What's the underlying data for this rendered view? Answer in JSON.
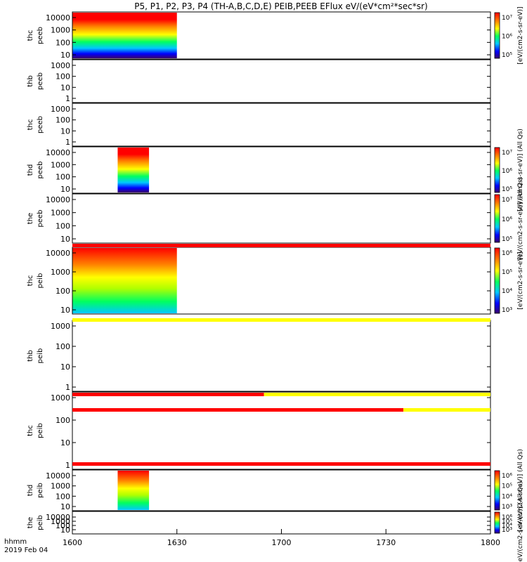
{
  "chart_data": {
    "type": "heatmap",
    "title": "P5, P1, P2, P3, P4 (TH-A,B,C,D,E) PEIB,PEEB EFlux eV/(eV*cm²*sec*sr)",
    "x": {
      "label_line1": "hhmm",
      "label_line2": "2019 Feb 04",
      "range": [
        "1600",
        "1800"
      ],
      "tick_labels": [
        "1600",
        "1630",
        "1700",
        "1730",
        "1800"
      ]
    },
    "panels": [
      {
        "id": "thc_peeb",
        "label_line1": "thc",
        "label_line2": "peeb",
        "yticks": [
          "10",
          "100",
          "1000",
          "10000"
        ],
        "ylog": true,
        "data": {
          "start": "1600",
          "end": "1630"
        },
        "colorbar": {
          "label": "[eV/(cm2-s-sr-eV)]",
          "ticks": [
            "10⁵",
            "10⁶",
            "10⁷"
          ]
        }
      },
      {
        "id": "thb_peeb",
        "label_line1": "thb",
        "label_line2": "peeb",
        "yticks": [
          "1",
          "10",
          "100",
          "1000"
        ],
        "ylog": true,
        "data": null
      },
      {
        "id": "thc_peeb_2",
        "label_line1": "thc",
        "label_line2": "peeb",
        "yticks": [
          "1",
          "10",
          "100",
          "1000"
        ],
        "ylog": true,
        "data": null
      },
      {
        "id": "thd_peeb",
        "label_line1": "thd",
        "label_line2": "peeb",
        "yticks": [
          "10",
          "100",
          "1000",
          "10000"
        ],
        "ylog": true,
        "data": {
          "start": "1613",
          "end": "1622"
        },
        "colorbar": {
          "label": "[eV/(cm2-s-sr-eV)] (All Qs)",
          "ticks": [
            "10⁵",
            "10⁶",
            "10⁷"
          ]
        }
      },
      {
        "id": "the_peeb",
        "label_line1": "the",
        "label_line2": "peeb",
        "yticks": [
          "10",
          "100",
          "1000",
          "10000"
        ],
        "ylog": true,
        "data": null,
        "colorbar": {
          "label": "[eV/(cm2-s-sr-eV)] (All Qs)",
          "ticks": [
            "10⁵",
            "10⁶",
            "10⁷"
          ]
        }
      },
      {
        "id": "thc_peib",
        "label_line1": "thc",
        "label_line2": "peib",
        "yticks": [
          "10",
          "100",
          "1000",
          "10000"
        ],
        "ylog": true,
        "data": {
          "start": "1600",
          "end": "1630"
        },
        "colorbar": {
          "label": "[eV/(cm2-s-sr-eV)]",
          "ticks": [
            "10³",
            "10⁴",
            "10⁵",
            "10⁶"
          ]
        }
      },
      {
        "id": "thb_peib",
        "label_line1": "thb",
        "label_line2": "peib",
        "yticks": [
          "1",
          "10",
          "100",
          "1000"
        ],
        "ylog": true,
        "data": null
      },
      {
        "id": "thc_peib_2",
        "label_line1": "thc",
        "label_line2": "peib",
        "yticks": [
          "1",
          "10",
          "100",
          "1000"
        ],
        "ylog": true,
        "data": null
      },
      {
        "id": "thd_peib",
        "label_line1": "thd",
        "label_line2": "peib",
        "yticks": [
          "10",
          "100",
          "1000",
          "10000"
        ],
        "ylog": true,
        "data": {
          "start": "1613",
          "end": "1622"
        },
        "colorbar": {
          "label": "[eV/(cm2-s-sr-eV)] (All Qs)",
          "ticks": [
            "10³",
            "10⁴",
            "10⁵",
            "10⁶"
          ]
        }
      },
      {
        "id": "the_peib",
        "label_line1": "the",
        "label_line2": "peib",
        "yticks": [
          "10",
          "100",
          "1000",
          "10000"
        ],
        "ylog": true,
        "data": null,
        "colorbar": {
          "label": "[eV/(cm2-s-sr-eV)] (All Qs)",
          "ticks": [
            "10³",
            "10⁴",
            "10⁵",
            "10⁶"
          ]
        }
      }
    ],
    "status_bars": [
      {
        "after_panel": 4,
        "segments": [
          {
            "from": "1600",
            "to": "1800",
            "color": "#ff0000"
          }
        ]
      },
      {
        "after_panel": 5,
        "segments": [
          {
            "from": "1600",
            "to": "1800",
            "color": "#ffff00"
          }
        ]
      },
      {
        "after_panel": 6,
        "segments": [
          {
            "from": "1600",
            "to": "1655",
            "color": "#ff0000"
          },
          {
            "from": "1655",
            "to": "1800",
            "color": "#ffff00"
          }
        ]
      },
      {
        "after_panel": 7,
        "segments": [
          {
            "from": "1600",
            "to": "1735",
            "color": "#ff0000"
          },
          {
            "from": "1735",
            "to": "1800",
            "color": "#ffff00"
          }
        ]
      },
      {
        "after_panel": 8,
        "segments": [
          {
            "from": "1600",
            "to": "1800",
            "color": "#ff0000"
          }
        ]
      }
    ],
    "colormap": [
      "#3a006a",
      "#0000ff",
      "#00c8ff",
      "#00ff60",
      "#ffff00",
      "#ff8000",
      "#ff0000"
    ]
  }
}
